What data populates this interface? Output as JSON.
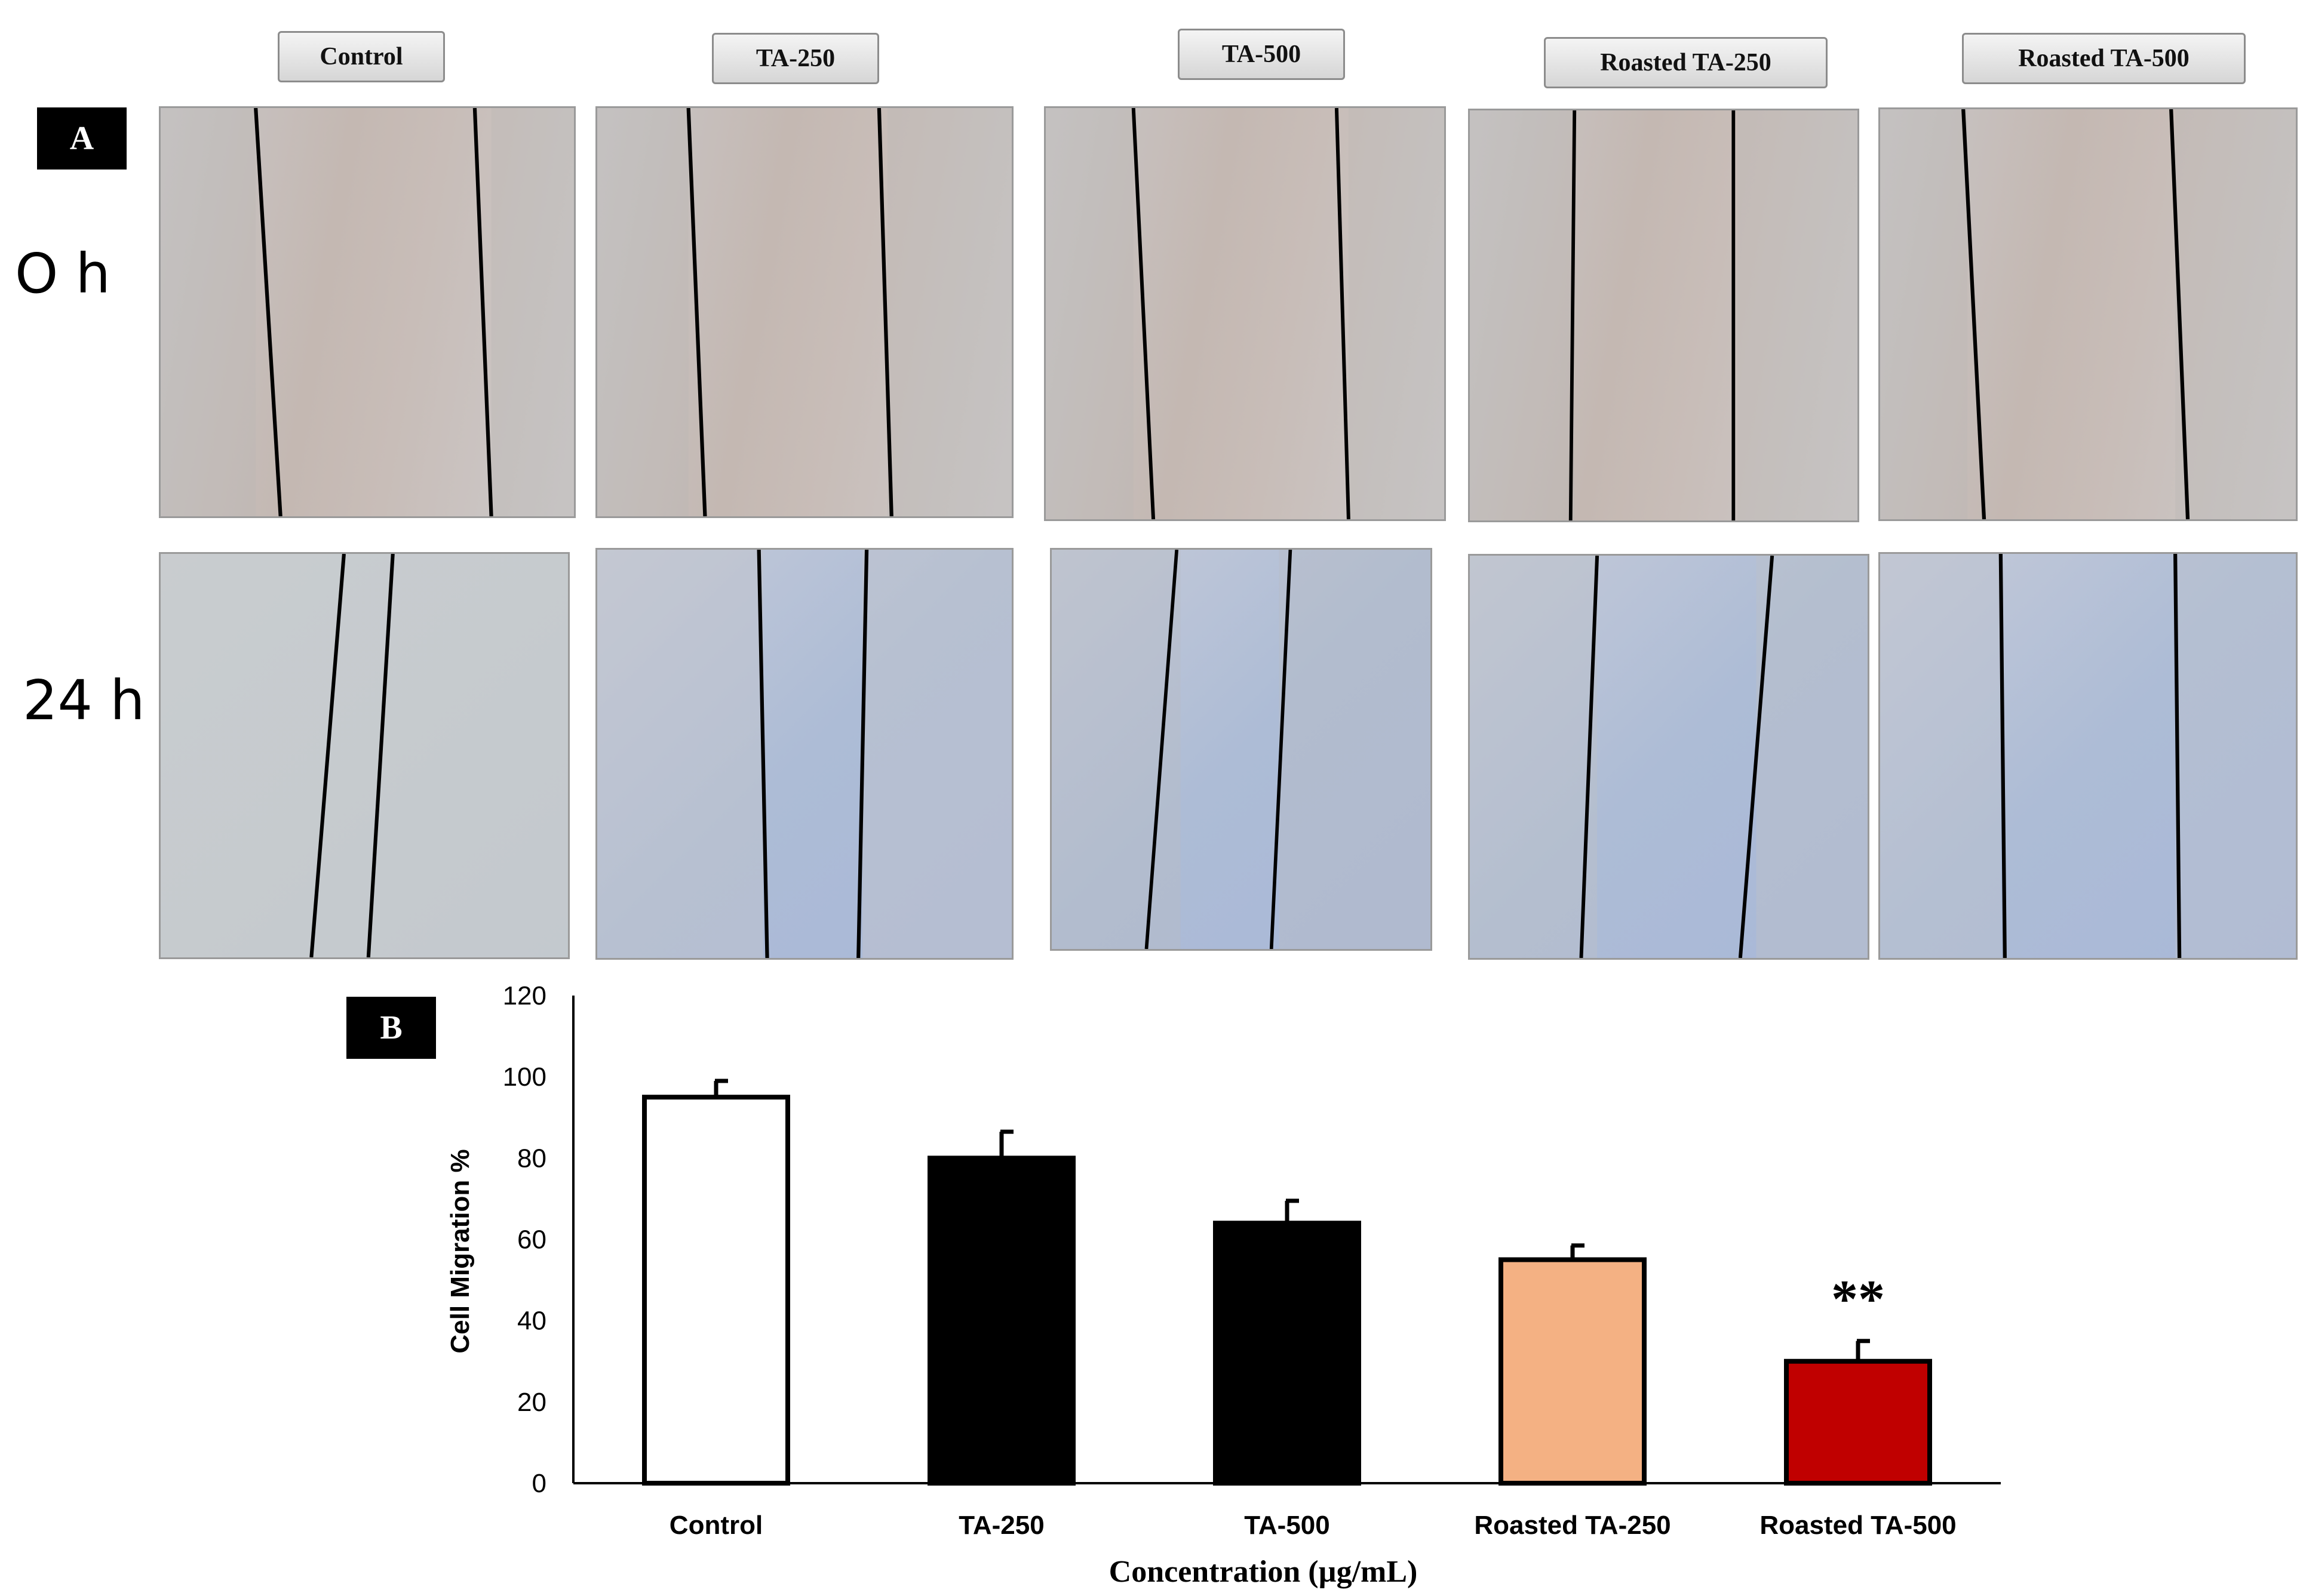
{
  "panel_a": {
    "label": "A",
    "column_headers": [
      "Control",
      "TA-250",
      "TA-500",
      "Roasted TA-250",
      "Roasted TA-500"
    ],
    "row_labels": [
      "O h",
      "24 h"
    ]
  },
  "panel_b": {
    "label": "B"
  },
  "chart_data": {
    "type": "bar",
    "categories": [
      "Control",
      "TA-250",
      "TA-500",
      "Roasted TA-250",
      "Roasted TA-500"
    ],
    "values": [
      95,
      80,
      64,
      55,
      30
    ],
    "errors": [
      4,
      6.5,
      5.5,
      3.5,
      5
    ],
    "bar_colors": [
      "#ffffff",
      "#000000",
      "#000000",
      "#f4b183",
      "#c00000"
    ],
    "annotations": [
      {
        "category": "Roasted TA-500",
        "text": "**"
      }
    ],
    "xlabel": "Concentration (µg/mL)",
    "ylabel": "Cell Migration %",
    "ylim": [
      0,
      120
    ],
    "yticks": [
      0,
      20,
      40,
      60,
      80,
      100,
      120
    ],
    "grid": false
  }
}
